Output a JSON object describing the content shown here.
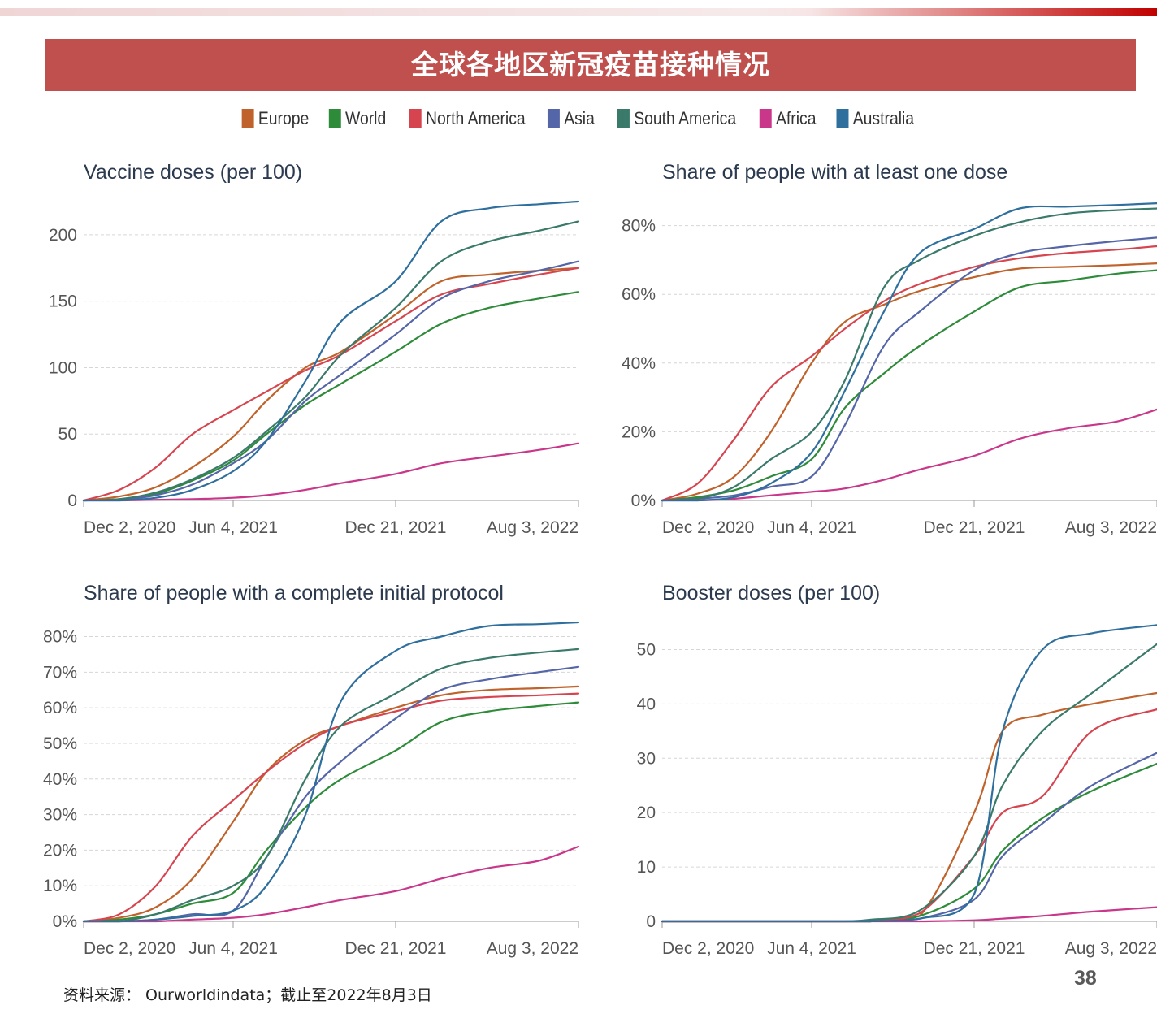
{
  "slide": {
    "title": "全球各地区新冠疫苗接种情况",
    "source": "资料来源： Ourworldindata；截止至2022年8月3日",
    "page_number": "38"
  },
  "colors": {
    "Europe": "#c0622b",
    "World": "#2e8b3a",
    "North America": "#d6454f",
    "Asia": "#5566a8",
    "South America": "#3a7a6a",
    "Africa": "#c9378a",
    "Australia": "#2e6f9e",
    "banner": "#c0504d"
  },
  "legend": [
    "Europe",
    "World",
    "North America",
    "Asia",
    "South America",
    "Africa",
    "Australia"
  ],
  "chart_data": [
    {
      "type": "line",
      "title": "Vaccine doses (per 100)",
      "x_ticks": [
        "Dec 2, 2020",
        "Jun 4, 2021",
        "Dec 21, 2021",
        "Aug 3, 2022"
      ],
      "y_ticks": [
        "0",
        "50",
        "100",
        "150",
        "200"
      ],
      "ylim": [
        0,
        225
      ],
      "x": [
        "2020-12-02",
        "2021-01-15",
        "2021-03-01",
        "2021-04-15",
        "2021-06-04",
        "2021-07-15",
        "2021-09-01",
        "2021-10-15",
        "2021-12-21",
        "2022-02-15",
        "2022-04-15",
        "2022-06-15",
        "2022-08-03"
      ],
      "series": [
        {
          "name": "Europe",
          "values": [
            0,
            3,
            10,
            25,
            48,
            75,
            100,
            112,
            140,
            165,
            170,
            173,
            175
          ]
        },
        {
          "name": "World",
          "values": [
            0,
            1,
            5,
            15,
            30,
            50,
            72,
            88,
            112,
            133,
            145,
            152,
            157
          ]
        },
        {
          "name": "North America",
          "values": [
            0,
            8,
            25,
            50,
            68,
            82,
            98,
            110,
            135,
            155,
            163,
            170,
            175
          ]
        },
        {
          "name": "Asia",
          "values": [
            0,
            0.5,
            4,
            12,
            28,
            45,
            75,
            95,
            125,
            152,
            165,
            173,
            180
          ]
        },
        {
          "name": "South America",
          "values": [
            0,
            1,
            6,
            16,
            32,
            52,
            78,
            110,
            145,
            180,
            195,
            203,
            210
          ]
        },
        {
          "name": "Africa",
          "values": [
            0,
            0,
            0.5,
            1,
            2,
            4,
            8,
            13,
            20,
            28,
            33,
            38,
            43
          ]
        },
        {
          "name": "Australia",
          "values": [
            0,
            0,
            2,
            8,
            22,
            45,
            90,
            135,
            165,
            210,
            220,
            223,
            225
          ]
        }
      ]
    },
    {
      "type": "line",
      "title": "Share of people with at least one dose",
      "x_ticks": [
        "Dec 2, 2020",
        "Jun 4, 2021",
        "Dec 21, 2021",
        "Aug 3, 2022"
      ],
      "y_ticks": [
        "0%",
        "20%",
        "40%",
        "60%",
        "80%"
      ],
      "ylim": [
        0,
        87
      ],
      "x": [
        "2020-12-02",
        "2021-01-15",
        "2021-03-01",
        "2021-04-15",
        "2021-06-04",
        "2021-07-15",
        "2021-09-01",
        "2021-10-15",
        "2021-12-21",
        "2022-02-15",
        "2022-04-15",
        "2022-06-15",
        "2022-08-03"
      ],
      "series": [
        {
          "name": "Europe",
          "values": [
            0,
            2,
            7,
            20,
            40,
            52,
            57,
            61,
            65,
            67.5,
            68,
            68.5,
            69
          ]
        },
        {
          "name": "World",
          "values": [
            0,
            1,
            3,
            7,
            12,
            27,
            37,
            45,
            55,
            62,
            64,
            66,
            67
          ]
        },
        {
          "name": "North America",
          "values": [
            0,
            5,
            18,
            33,
            42,
            50,
            58,
            63,
            68,
            70.5,
            72,
            73,
            74
          ]
        },
        {
          "name": "Asia",
          "values": [
            0,
            0.5,
            1.5,
            4,
            7,
            22,
            45,
            55,
            67,
            72,
            74,
            75.5,
            76.5
          ]
        },
        {
          "name": "South America",
          "values": [
            0,
            0.5,
            4,
            12,
            20,
            35,
            62,
            70,
            77,
            81,
            83.5,
            84.5,
            85
          ]
        },
        {
          "name": "Africa",
          "values": [
            0,
            0,
            0.5,
            1.5,
            2.5,
            3.5,
            6,
            9,
            13,
            18,
            21,
            23,
            26.5
          ]
        },
        {
          "name": "Australia",
          "values": [
            0,
            0,
            1,
            5,
            14,
            32,
            55,
            72,
            79,
            85,
            85.5,
            86,
            86.5
          ]
        }
      ]
    },
    {
      "type": "line",
      "title": "Share of people with a complete initial protocol",
      "x_ticks": [
        "Dec 2, 2020",
        "Jun 4, 2021",
        "Dec 21, 2021",
        "Aug 3, 2022"
      ],
      "y_ticks": [
        "0%",
        "10%",
        "20%",
        "30%",
        "40%",
        "50%",
        "60%",
        "70%",
        "80%"
      ],
      "ylim": [
        0,
        84
      ],
      "x": [
        "2020-12-02",
        "2021-01-15",
        "2021-03-01",
        "2021-04-15",
        "2021-06-04",
        "2021-07-15",
        "2021-09-01",
        "2021-10-15",
        "2021-12-21",
        "2022-02-15",
        "2022-04-15",
        "2022-06-15",
        "2022-08-03"
      ],
      "series": [
        {
          "name": "Europe",
          "values": [
            0,
            1,
            4,
            12,
            28,
            42,
            51,
            55,
            60,
            63.5,
            65,
            65.5,
            66
          ]
        },
        {
          "name": "World",
          "values": [
            0,
            0.5,
            2,
            5,
            8,
            20,
            32,
            40,
            48,
            56,
            59,
            60.5,
            61.5
          ]
        },
        {
          "name": "North America",
          "values": [
            0,
            2,
            10,
            24,
            34,
            42,
            50,
            55,
            59,
            62,
            63,
            63.5,
            64
          ]
        },
        {
          "name": "Asia",
          "values": [
            0,
            0,
            0.5,
            2,
            3,
            18,
            35,
            45,
            57,
            65,
            68,
            70,
            71.5
          ]
        },
        {
          "name": "South America",
          "values": [
            0,
            0,
            2,
            6,
            10,
            18,
            40,
            55,
            64,
            71,
            74,
            75.5,
            76.5
          ]
        },
        {
          "name": "Africa",
          "values": [
            0,
            0,
            0,
            0.5,
            1,
            2,
            4,
            6,
            8.5,
            12,
            15,
            17,
            21
          ]
        },
        {
          "name": "Australia",
          "values": [
            0,
            0,
            0.5,
            1.5,
            3,
            10,
            30,
            62,
            76,
            80,
            83,
            83.5,
            84
          ]
        }
      ]
    },
    {
      "type": "line",
      "title": "Booster doses (per 100)",
      "x_ticks": [
        "Dec 2, 2020",
        "Jun 4, 2021",
        "Dec 21, 2021",
        "Aug 3, 2022"
      ],
      "y_ticks": [
        "0",
        "10",
        "20",
        "30",
        "40",
        "50"
      ],
      "ylim": [
        0,
        55
      ],
      "x": [
        "2020-12-02",
        "2021-01-15",
        "2021-03-01",
        "2021-04-15",
        "2021-06-04",
        "2021-07-15",
        "2021-08-15",
        "2021-10-15",
        "2021-12-21",
        "2022-01-25",
        "2022-03-15",
        "2022-05-15",
        "2022-08-03"
      ],
      "series": [
        {
          "name": "Europe",
          "values": [
            0,
            0,
            0,
            0,
            0,
            0,
            0,
            1,
            20,
            35,
            38,
            40,
            42
          ]
        },
        {
          "name": "World",
          "values": [
            0,
            0,
            0,
            0,
            0,
            0,
            0,
            1,
            6,
            13,
            19,
            24,
            29
          ]
        },
        {
          "name": "North America",
          "values": [
            0,
            0,
            0,
            0,
            0,
            0,
            0,
            1.5,
            12,
            20,
            23,
            35,
            39
          ]
        },
        {
          "name": "Asia",
          "values": [
            0,
            0,
            0,
            0,
            0,
            0,
            0,
            0.5,
            4,
            12,
            18,
            25,
            31
          ]
        },
        {
          "name": "South America",
          "values": [
            0,
            0,
            0,
            0,
            0,
            0,
            0.3,
            2,
            12,
            25,
            35,
            42,
            51
          ]
        },
        {
          "name": "Africa",
          "values": [
            0,
            0,
            0,
            0,
            0,
            0,
            0,
            0,
            0.2,
            0.5,
            1,
            1.8,
            2.6
          ]
        },
        {
          "name": "Australia",
          "values": [
            0,
            0,
            0,
            0,
            0,
            0,
            0,
            0.5,
            5,
            35,
            50,
            53,
            54.5
          ]
        }
      ]
    }
  ]
}
